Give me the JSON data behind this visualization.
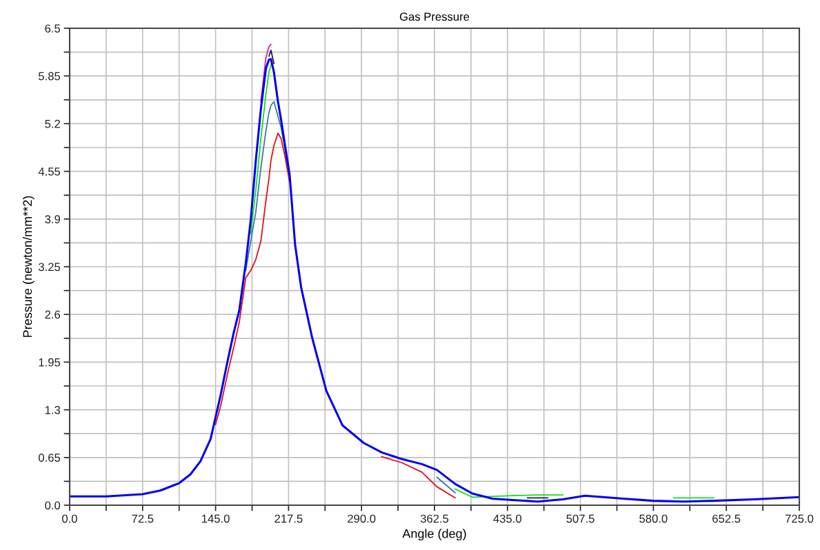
{
  "chart_data": {
    "type": "line",
    "title": "Gas Pressure",
    "xlabel": "Angle (deg)",
    "ylabel": "Pressure (newton/mm**2)",
    "x": [
      0,
      36.25,
      72.5,
      90,
      108.75,
      120,
      130,
      140,
      145,
      150,
      157,
      163,
      168.6,
      175,
      180,
      185,
      190,
      195,
      198,
      200,
      203,
      207,
      210,
      214,
      218.6,
      224,
      230,
      241,
      255,
      271,
      292,
      310,
      330,
      350,
      365,
      383,
      400,
      420,
      440,
      465,
      490,
      512,
      530,
      550,
      580,
      610,
      640,
      680,
      725
    ],
    "series": [
      {
        "color": "#e01010",
        "x": [
          145,
          150,
          157,
          163,
          168.6,
          175,
          180,
          185,
          190,
          195,
          198,
          200,
          203,
          207,
          210,
          214,
          218.6,
          260,
          310,
          330,
          350,
          365,
          383
        ],
        "values": [
          1.1,
          1.35,
          1.8,
          2.15,
          2.5,
          3.1,
          3.2,
          3.35,
          3.6,
          4.15,
          4.45,
          4.7,
          4.9,
          5.07,
          5.0,
          4.75,
          4.4,
          null,
          0.66,
          0.58,
          0.45,
          0.25,
          0.1
        ]
      },
      {
        "color": "#3a7ca5",
        "x": [
          175,
          180,
          185,
          190,
          195,
          198,
          200,
          203,
          207,
          210,
          214,
          218.6,
          300,
          365,
          383
        ],
        "values": [
          3.2,
          3.6,
          4.0,
          4.6,
          5.1,
          5.35,
          5.45,
          5.5,
          5.3,
          5.15,
          4.85,
          4.45,
          null,
          0.38,
          0.17
        ]
      },
      {
        "color": "#10e010",
        "x": [
          180,
          185,
          190,
          195,
          198,
          200,
          300,
          383,
          400,
          440,
          465,
          490,
          550,
          600,
          640
        ],
        "values": [
          3.7,
          4.3,
          5.0,
          5.6,
          5.9,
          6.0,
          null,
          0.22,
          0.11,
          0.13,
          0.14,
          0.14,
          null,
          0.1,
          0.1
        ]
      },
      {
        "color": "#d81ea0",
        "x": [
          190,
          195,
          198,
          200
        ],
        "values": [
          5.5,
          6.1,
          6.25,
          6.28
        ]
      },
      {
        "color": "#1a1a3a",
        "x": [
          198,
          200,
          203,
          300,
          455,
          475
        ],
        "values": [
          6.12,
          6.2,
          6.02,
          null,
          0.1,
          0.1
        ]
      },
      {
        "color": "#0000f0",
        "values": [
          0.12,
          0.12,
          0.15,
          0.2,
          0.3,
          0.42,
          0.6,
          0.9,
          1.2,
          1.5,
          1.97,
          2.35,
          2.66,
          3.3,
          3.9,
          4.7,
          5.4,
          5.95,
          6.07,
          6.08,
          5.9,
          5.5,
          5.26,
          4.9,
          4.5,
          3.55,
          2.97,
          2.28,
          1.56,
          1.09,
          0.85,
          0.72,
          0.63,
          0.56,
          0.48,
          0.29,
          0.16,
          0.09,
          0.07,
          0.05,
          0.08,
          0.13,
          0.11,
          0.09,
          0.06,
          0.05,
          0.06,
          0.08,
          0.11
        ]
      }
    ],
    "xlim": [
      0,
      725
    ],
    "xticks": [
      {
        "value": 0,
        "label": "0.0"
      },
      {
        "value": 36.25,
        "label": null
      },
      72.5,
      {
        "value": 108.75,
        "label": null
      },
      {
        "value": 145,
        "label": "145.0"
      },
      {
        "value": 181.25,
        "label": null
      },
      217.5,
      {
        "value": 253.75,
        "label": null
      },
      {
        "value": 290,
        "label": "290.0"
      },
      {
        "value": 326.25,
        "label": null
      },
      362.5,
      {
        "value": 398.75,
        "label": null
      },
      {
        "value": 435,
        "label": "435.0"
      },
      {
        "value": 471.25,
        "label": null
      },
      507.5,
      {
        "value": 543.75,
        "label": null
      },
      {
        "value": 580,
        "label": "580.0"
      },
      {
        "value": 616.25,
        "label": null
      },
      652.5,
      {
        "value": 688.75,
        "label": null
      },
      {
        "value": 725,
        "label": "725.0"
      }
    ],
    "ylim": [
      0,
      6.5
    ],
    "yticks": [
      {
        "value": 0,
        "label": "0.0"
      },
      {
        "value": 0.325,
        "label": null
      },
      0.65,
      {
        "value": 0.975,
        "label": null
      },
      1.3,
      {
        "value": 1.625,
        "label": null
      },
      1.95,
      {
        "value": 2.275,
        "label": null
      },
      2.6,
      {
        "value": 2.925,
        "label": null
      },
      3.25,
      {
        "value": 3.575,
        "label": null
      },
      3.9,
      {
        "value": 4.225,
        "label": null
      },
      4.55,
      {
        "value": 4.875,
        "label": null
      },
      5.2,
      {
        "value": 5.525,
        "label": null
      },
      5.85,
      {
        "value": 6.175,
        "label": null
      },
      6.5
    ],
    "grid": true,
    "legend": false,
    "marker": "none",
    "line_style": "solid"
  }
}
